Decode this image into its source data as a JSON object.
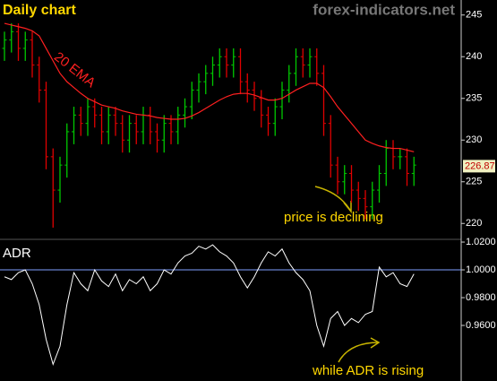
{
  "watermark": "forex-indicators.net",
  "chart_data": [
    {
      "type": "ohlc",
      "title": "Daily chart",
      "series": [
        {
          "name": "price",
          "up_color": "#00c800",
          "down_color": "#e00000",
          "open": [
            241,
            242,
            243,
            241,
            242,
            239,
            236,
            228,
            224,
            227,
            231,
            233,
            232,
            234,
            233,
            231,
            233,
            232,
            230,
            232,
            231,
            233,
            231,
            230,
            232,
            231,
            233,
            234,
            236,
            237,
            238,
            239,
            240,
            239,
            240,
            237,
            236,
            235,
            233,
            232,
            234,
            236,
            238,
            240,
            239,
            240,
            238,
            232,
            227,
            225,
            226,
            224,
            223,
            222,
            224,
            226,
            229,
            228,
            228,
            226
          ],
          "high": [
            243,
            244,
            244,
            243,
            243,
            240,
            237,
            229,
            228,
            232,
            234,
            234,
            235,
            235,
            234,
            234,
            234,
            233,
            233,
            233,
            234,
            234,
            232,
            233,
            233,
            234,
            235,
            237,
            238,
            239,
            240,
            241,
            241,
            241,
            241,
            238,
            237,
            236,
            234,
            235,
            237,
            239,
            241,
            241,
            241,
            241,
            239,
            233,
            228,
            227,
            227,
            225,
            224,
            225,
            227,
            230,
            230,
            229,
            229,
            228
          ],
          "low": [
            239.5,
            240.5,
            239.5,
            239.5,
            237.5,
            234.5,
            226.5,
            219.5,
            222.5,
            225.5,
            229.5,
            230.5,
            230.5,
            231.5,
            229.5,
            229.5,
            230.5,
            228.5,
            228.5,
            229.5,
            229.5,
            229.5,
            228.5,
            228.5,
            229.5,
            229.5,
            231.5,
            232.5,
            234.5,
            235.5,
            236.5,
            237.5,
            237.5,
            237.5,
            235.5,
            234.5,
            233.5,
            231.5,
            230.5,
            230.5,
            232.5,
            234.5,
            236.5,
            237.5,
            237.5,
            236.5,
            230.5,
            225.5,
            223.5,
            223.5,
            222.5,
            221.5,
            220.5,
            220.5,
            222.5,
            224.5,
            226.5,
            226.5,
            224.5,
            224.5
          ],
          "close": [
            242,
            243,
            241,
            242,
            239,
            236,
            228,
            224,
            227,
            231,
            233,
            232,
            234,
            233,
            231,
            233,
            232,
            230,
            232,
            231,
            233,
            231,
            230,
            232,
            231,
            233,
            234,
            236,
            237,
            238,
            239,
            240,
            239,
            240,
            237,
            236,
            235,
            233,
            232,
            234,
            236,
            238,
            240,
            239,
            240,
            238,
            232,
            227,
            225,
            226,
            224,
            223,
            222,
            224,
            226,
            229,
            228,
            228,
            226,
            227
          ]
        },
        {
          "name": "20 EMA",
          "color": "#ff2020",
          "values": [
            244,
            243.8,
            243.6,
            243.4,
            243.1,
            242.5,
            241,
            239.5,
            238,
            237,
            236.3,
            235.6,
            235,
            234.6,
            234.2,
            234,
            233.8,
            233.5,
            233.3,
            233.1,
            233,
            232.9,
            232.7,
            232.6,
            232.5,
            232.5,
            232.6,
            232.9,
            233.3,
            233.8,
            234.3,
            234.8,
            235.2,
            235.5,
            235.6,
            235.6,
            235.4,
            235.1,
            234.8,
            234.8,
            235,
            235.5,
            236,
            236.4,
            236.8,
            236.8,
            236.3,
            235.2,
            234,
            233,
            232,
            231,
            230,
            229.6,
            229.3,
            229.1,
            229,
            229,
            228.8,
            228.6
          ]
        }
      ],
      "last_value": 226.87,
      "annotations": [
        "price is declining"
      ],
      "ylim": [
        218.2,
        246.8
      ],
      "yticks": [
        220,
        225,
        230,
        235,
        240,
        245
      ]
    },
    {
      "type": "line",
      "title": "ADR",
      "series": [
        {
          "name": "ADR",
          "color": "#ffffff",
          "values": [
            0.995,
            0.993,
            0.998,
            1.0,
            0.99,
            0.975,
            0.95,
            0.932,
            0.945,
            0.975,
            0.998,
            0.99,
            0.985,
            1.0,
            0.992,
            0.988,
            0.997,
            0.985,
            0.993,
            0.99,
            0.995,
            0.985,
            0.99,
            1.0,
            0.997,
            1.005,
            1.01,
            1.012,
            1.017,
            1.015,
            1.018,
            1.013,
            1.01,
            1.005,
            0.995,
            0.987,
            0.995,
            1.005,
            1.013,
            1.01,
            1.015,
            1.005,
            0.998,
            0.993,
            0.985,
            0.96,
            0.945,
            0.965,
            0.97,
            0.96,
            0.965,
            0.962,
            0.968,
            0.97,
            1.002,
            0.995,
            0.998,
            0.99,
            0.988,
            0.997
          ]
        }
      ],
      "hline": {
        "value": 1,
        "color": "#7f9fff"
      },
      "annotations": [
        "while ADR is rising"
      ],
      "ylim": [
        0.92,
        1.0226
      ],
      "yticks": [
        {
          "value": 0.96,
          "label": "0.9600"
        },
        {
          "value": 0.98,
          "label": "0.9800"
        },
        {
          "value": 1,
          "label": "1.0000"
        },
        {
          "value": 1.02,
          "label": "1.0200"
        }
      ]
    }
  ]
}
